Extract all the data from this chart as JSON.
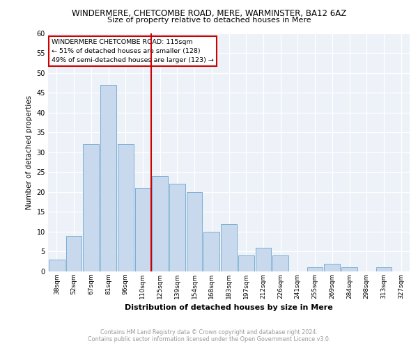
{
  "title1": "WINDERMERE, CHETCOMBE ROAD, MERE, WARMINSTER, BA12 6AZ",
  "title2": "Size of property relative to detached houses in Mere",
  "xlabel": "Distribution of detached houses by size in Mere",
  "ylabel": "Number of detached properties",
  "categories": [
    "38sqm",
    "52sqm",
    "67sqm",
    "81sqm",
    "96sqm",
    "110sqm",
    "125sqm",
    "139sqm",
    "154sqm",
    "168sqm",
    "183sqm",
    "197sqm",
    "212sqm",
    "226sqm",
    "241sqm",
    "255sqm",
    "269sqm",
    "284sqm",
    "298sqm",
    "313sqm",
    "327sqm"
  ],
  "values": [
    3,
    9,
    32,
    47,
    32,
    21,
    24,
    22,
    20,
    10,
    12,
    4,
    6,
    4,
    0,
    1,
    2,
    1,
    0,
    1,
    0
  ],
  "bar_color": "#c9d9ed",
  "bar_edge_color": "#7bafd4",
  "vline_x": 5.5,
  "vline_color": "#cc0000",
  "annotation_lines": [
    "WINDERMERE CHETCOMBE ROAD: 115sqm",
    "← 51% of detached houses are smaller (128)",
    "49% of semi-detached houses are larger (123) →"
  ],
  "annotation_box_color": "#cc0000",
  "ylim": [
    0,
    60
  ],
  "yticks": [
    0,
    5,
    10,
    15,
    20,
    25,
    30,
    35,
    40,
    45,
    50,
    55,
    60
  ],
  "footer": "Contains HM Land Registry data © Crown copyright and database right 2024.\nContains public sector information licensed under the Open Government Licence v3.0.",
  "plot_bg_color": "#edf2f9"
}
